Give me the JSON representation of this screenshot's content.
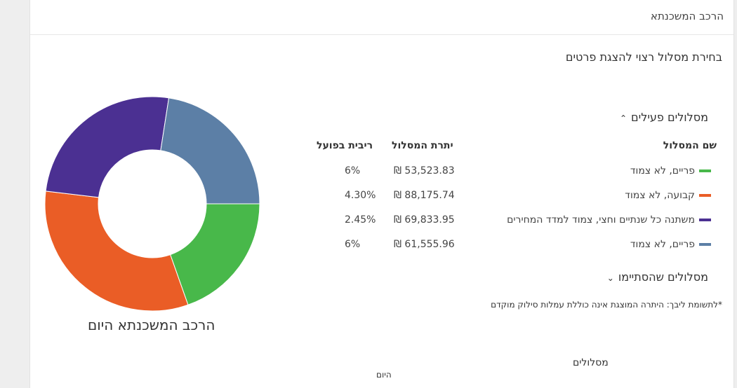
{
  "header": {
    "title": "הרכב המשכנתא"
  },
  "subtitle": "בחירת מסלול רצוי להצגת פרטים",
  "active_section": {
    "title": "מסלולים פעילים",
    "expanded": true,
    "chevron_icon": "chevron-up-icon"
  },
  "completed_section": {
    "title": "מסלולים שהסתיימו",
    "expanded": false,
    "chevron_icon": "chevron-down-icon"
  },
  "table": {
    "headers": {
      "name": "שם המסלול",
      "balance": "יתרת המסלול",
      "rate": "ריבית בפועל"
    },
    "rows": [
      {
        "name": "פריים, לא צמוד",
        "balance": "₪ 53,523.83",
        "rate": "6%",
        "color": "#48b84a"
      },
      {
        "name": "קבועה, לא צמוד",
        "balance": "₪ 88,175.74",
        "rate": "4.30%",
        "color": "#ea5d26"
      },
      {
        "name": "משתנה כל שנתיים וחצי, צמוד למדד המחירים",
        "balance": "₪ 69,833.95",
        "rate": "2.45%",
        "color": "#4b3092"
      },
      {
        "name": "פריים, לא צמוד",
        "balance": "₪ 61,555.96",
        "rate": "6%",
        "color": "#5c7fa6"
      }
    ]
  },
  "note": "*לתשומת ליבך: היתרה המוצגת אינה כוללת עמלות סילוק מוקדם",
  "chart_caption": "הרכב המשכנתא היום",
  "bottom": {
    "label_tracks": "מסלולים",
    "label_today": "היום"
  },
  "chart_data": {
    "type": "pie",
    "donut": true,
    "categories": [
      "פריים, לא צמוד",
      "קבועה, לא צמוד",
      "משתנה כל שנתיים וחצי, צמוד למדד המחירים",
      "פריים, לא צמוד"
    ],
    "values": [
      53523.83,
      88175.74,
      69833.95,
      61555.96
    ],
    "colors": [
      "#48b84a",
      "#ea5d26",
      "#4b3092",
      "#5c7fa6"
    ],
    "start_angle_deg": 90,
    "direction": "clockwise",
    "title": "הרכב המשכנתא היום"
  }
}
